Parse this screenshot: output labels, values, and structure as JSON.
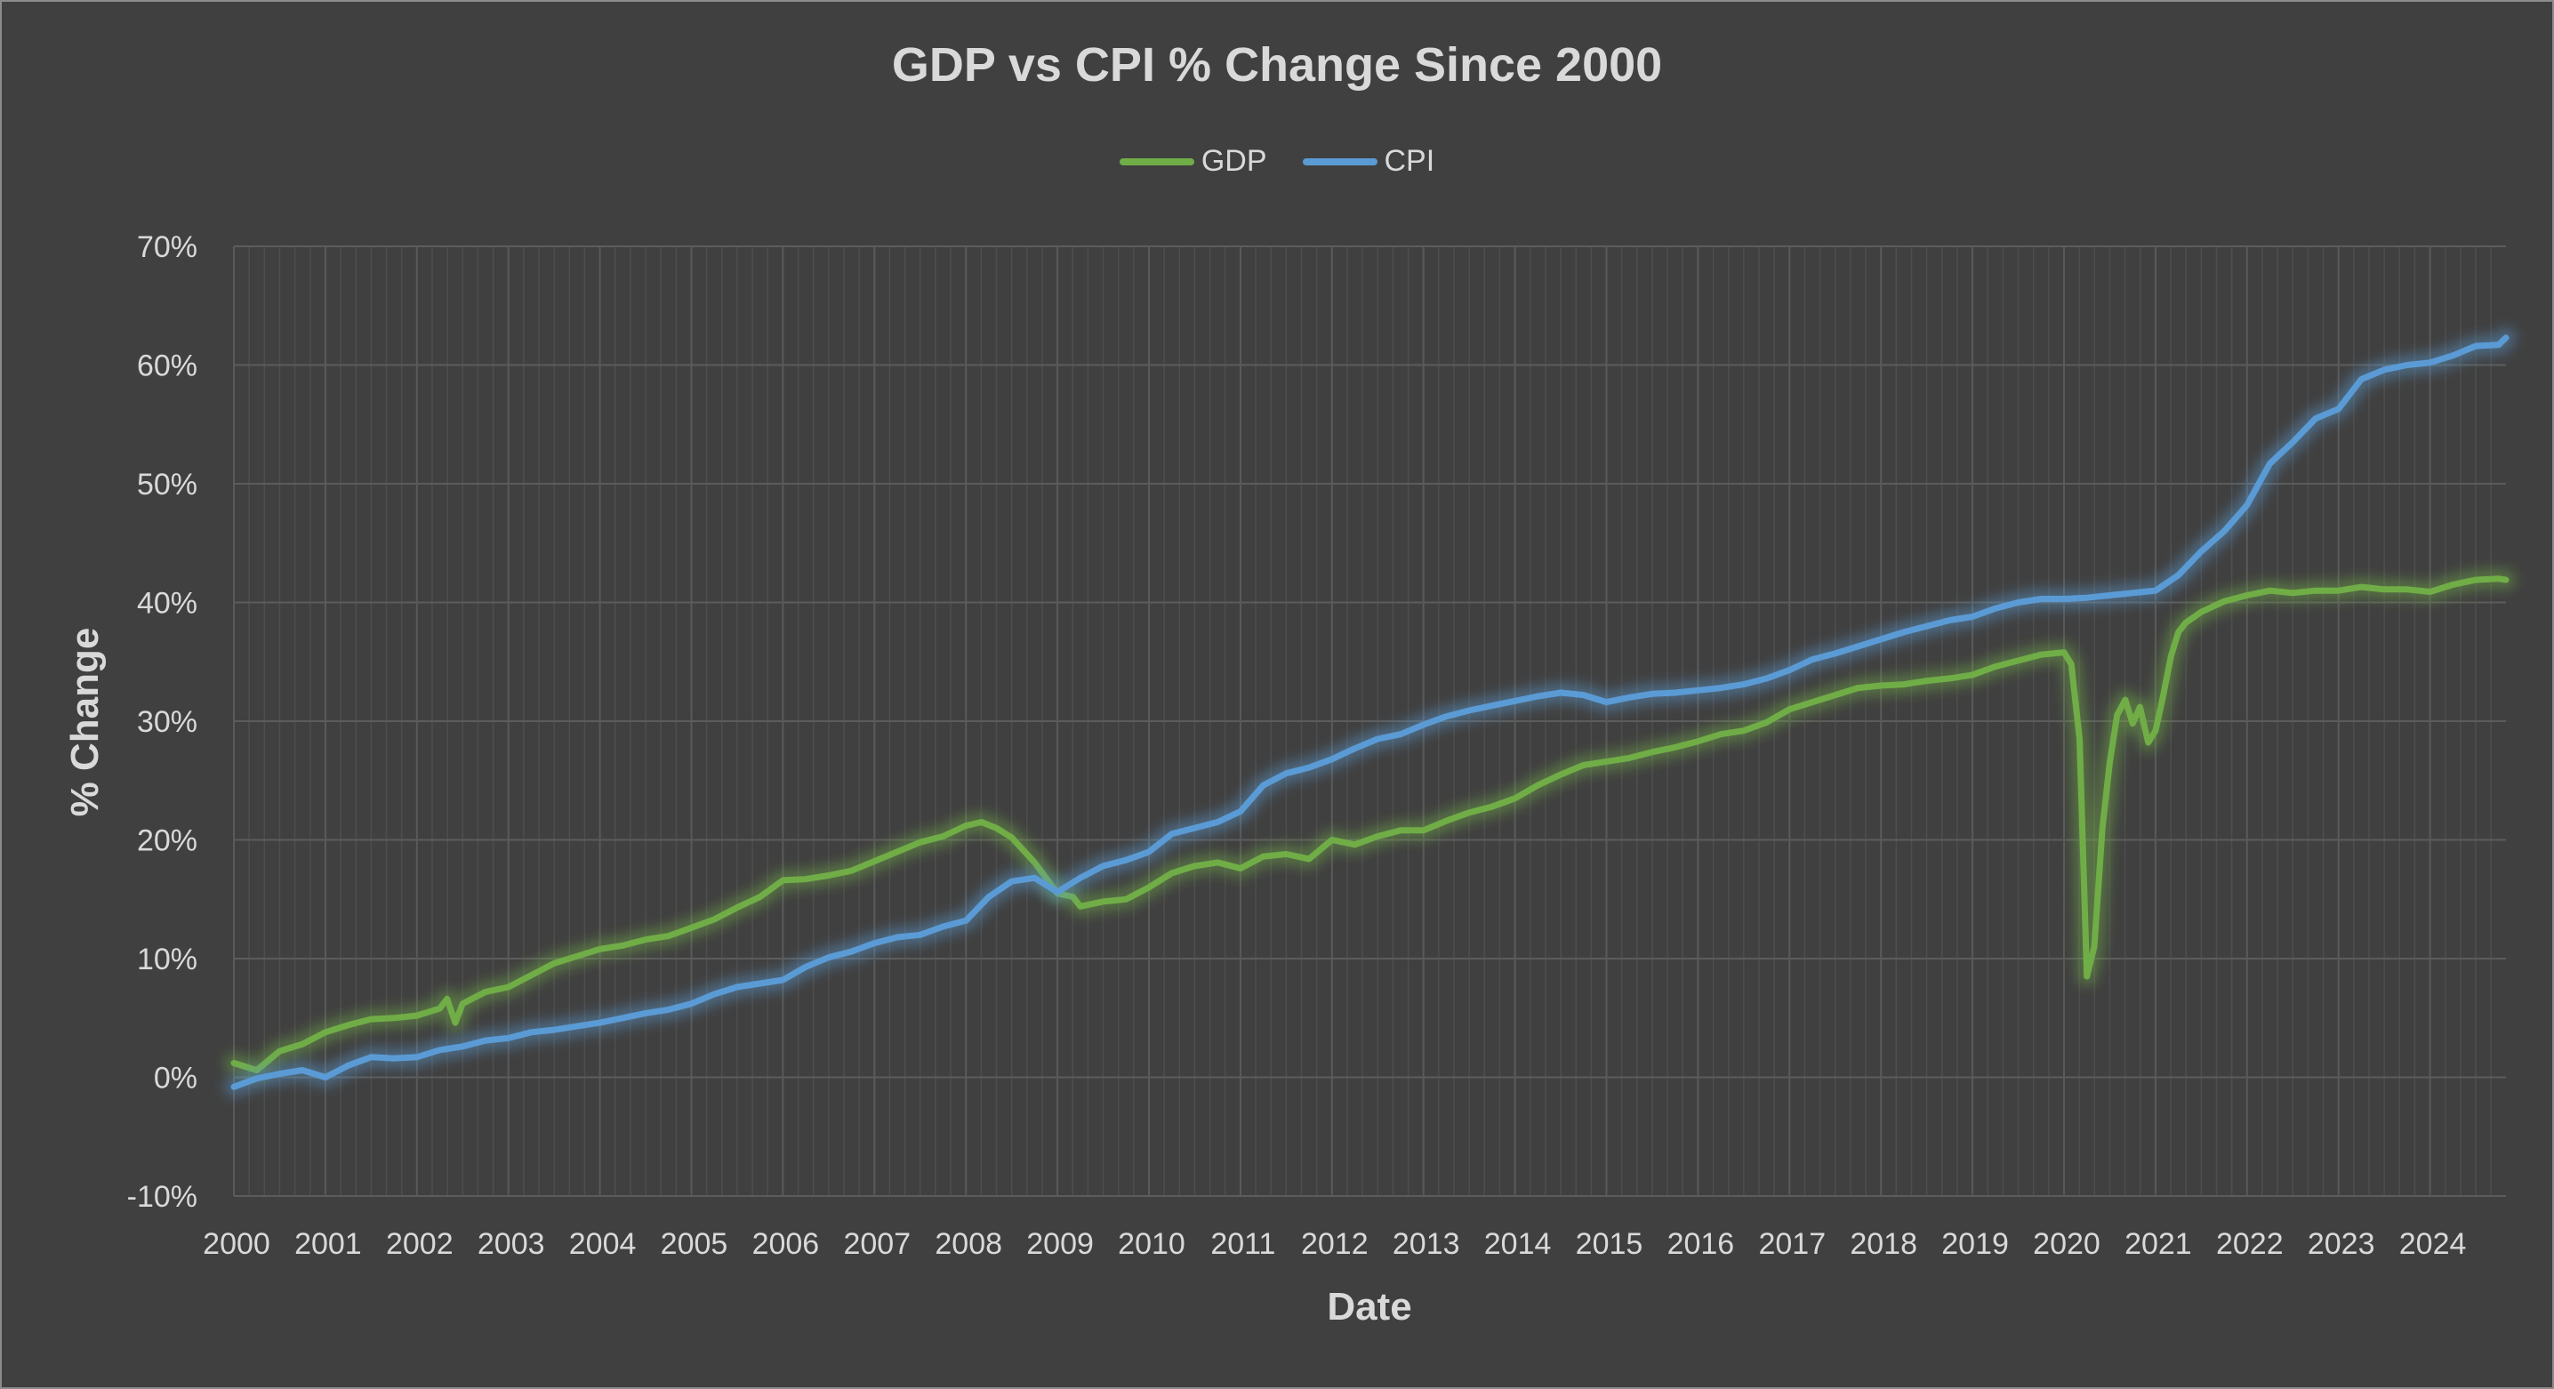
{
  "chart_data": {
    "type": "line",
    "title": "GDP vs CPI % Change Since 2000",
    "xlabel": "Date",
    "ylabel": "% Change",
    "ylim": [
      -10,
      70
    ],
    "y_ticks": [
      "-10%",
      "0%",
      "10%",
      "20%",
      "30%",
      "40%",
      "50%",
      "60%",
      "70%"
    ],
    "x_ticks": [
      "2000",
      "2001",
      "2002",
      "2003",
      "2004",
      "2005",
      "2006",
      "2007",
      "2008",
      "2009",
      "2010",
      "2011",
      "2012",
      "2013",
      "2014",
      "2015",
      "2016",
      "2017",
      "2018",
      "2019",
      "2020",
      "2021",
      "2022",
      "2023",
      "2024"
    ],
    "xlim": [
      2000.0,
      2024.83
    ],
    "grid": true,
    "legend_position": "top",
    "series": [
      {
        "name": "GDP",
        "color": "#70ad47",
        "x": [
          2000.0,
          2000.25,
          2000.5,
          2000.75,
          2001.0,
          2001.25,
          2001.5,
          2001.75,
          2002.0,
          2002.25,
          2002.33,
          2002.42,
          2002.5,
          2002.75,
          2003.0,
          2003.25,
          2003.5,
          2003.75,
          2004.0,
          2004.25,
          2004.5,
          2004.75,
          2005.0,
          2005.25,
          2005.5,
          2005.75,
          2006.0,
          2006.25,
          2006.5,
          2006.75,
          2007.0,
          2007.25,
          2007.5,
          2007.75,
          2008.0,
          2008.17,
          2008.33,
          2008.5,
          2008.75,
          2009.0,
          2009.17,
          2009.25,
          2009.5,
          2009.75,
          2010.0,
          2010.25,
          2010.5,
          2010.75,
          2011.0,
          2011.25,
          2011.5,
          2011.75,
          2012.0,
          2012.25,
          2012.5,
          2012.75,
          2013.0,
          2013.25,
          2013.5,
          2013.75,
          2014.0,
          2014.25,
          2014.5,
          2014.75,
          2015.0,
          2015.25,
          2015.5,
          2015.75,
          2016.0,
          2016.25,
          2016.5,
          2016.75,
          2017.0,
          2017.25,
          2017.5,
          2017.75,
          2018.0,
          2018.25,
          2018.5,
          2018.75,
          2019.0,
          2019.25,
          2019.5,
          2019.75,
          2020.0,
          2020.08,
          2020.17,
          2020.25,
          2020.33,
          2020.42,
          2020.5,
          2020.58,
          2020.67,
          2020.75,
          2020.83,
          2020.92,
          2021.0,
          2021.08,
          2021.17,
          2021.25,
          2021.33,
          2021.5,
          2021.75,
          2022.0,
          2022.25,
          2022.5,
          2022.75,
          2023.0,
          2023.25,
          2023.5,
          2023.75,
          2024.0,
          2024.25,
          2024.5,
          2024.75,
          2024.83
        ],
        "values": [
          1.2,
          0.6,
          2.2,
          2.8,
          3.8,
          4.4,
          4.9,
          5.0,
          5.2,
          5.8,
          6.6,
          4.6,
          6.2,
          7.2,
          7.6,
          8.6,
          9.6,
          10.2,
          10.8,
          11.1,
          11.6,
          11.9,
          12.6,
          13.3,
          14.3,
          15.2,
          16.6,
          16.7,
          17.0,
          17.4,
          18.2,
          19.0,
          19.8,
          20.3,
          21.2,
          21.5,
          21.0,
          20.2,
          18.1,
          15.5,
          15.2,
          14.4,
          14.8,
          15.0,
          16.0,
          17.2,
          17.8,
          18.1,
          17.6,
          18.6,
          18.8,
          18.4,
          20.0,
          19.6,
          20.3,
          20.8,
          20.8,
          21.6,
          22.3,
          22.8,
          23.5,
          24.6,
          25.5,
          26.3,
          26.6,
          26.9,
          27.4,
          27.8,
          28.3,
          28.9,
          29.2,
          29.9,
          31.0,
          31.6,
          32.2,
          32.8,
          33.0,
          33.1,
          33.4,
          33.6,
          33.9,
          34.6,
          35.1,
          35.6,
          35.8,
          34.8,
          28.5,
          8.5,
          11.0,
          21.0,
          26.5,
          30.5,
          31.8,
          29.8,
          31.2,
          28.2,
          29.2,
          32.0,
          35.5,
          37.5,
          38.3,
          39.2,
          40.1,
          40.6,
          41.0,
          40.8,
          41.0,
          41.0,
          41.3,
          41.1,
          41.1,
          40.9,
          41.5,
          41.9,
          42.0,
          41.9
        ]
      },
      {
        "name": "CPI",
        "color": "#5b9bd5",
        "x": [
          2000.0,
          2000.25,
          2000.5,
          2000.75,
          2001.0,
          2001.25,
          2001.5,
          2001.75,
          2002.0,
          2002.25,
          2002.5,
          2002.75,
          2003.0,
          2003.25,
          2003.5,
          2003.75,
          2004.0,
          2004.25,
          2004.5,
          2004.75,
          2005.0,
          2005.25,
          2005.5,
          2005.75,
          2006.0,
          2006.25,
          2006.5,
          2006.75,
          2007.0,
          2007.25,
          2007.5,
          2007.75,
          2008.0,
          2008.25,
          2008.5,
          2008.75,
          2009.0,
          2009.25,
          2009.5,
          2009.75,
          2010.0,
          2010.25,
          2010.5,
          2010.75,
          2011.0,
          2011.25,
          2011.5,
          2011.75,
          2012.0,
          2012.25,
          2012.5,
          2012.75,
          2013.0,
          2013.25,
          2013.5,
          2013.75,
          2014.0,
          2014.25,
          2014.5,
          2014.75,
          2015.0,
          2015.25,
          2015.5,
          2015.75,
          2016.0,
          2016.25,
          2016.5,
          2016.75,
          2017.0,
          2017.25,
          2017.5,
          2017.75,
          2018.0,
          2018.25,
          2018.5,
          2018.75,
          2019.0,
          2019.25,
          2019.5,
          2019.75,
          2020.0,
          2020.25,
          2020.5,
          2020.75,
          2021.0,
          2021.25,
          2021.5,
          2021.75,
          2022.0,
          2022.25,
          2022.5,
          2022.75,
          2023.0,
          2023.25,
          2023.5,
          2023.75,
          2024.0,
          2024.25,
          2024.5,
          2024.75,
          2024.83
        ],
        "values": [
          -0.8,
          -0.1,
          0.3,
          0.6,
          0.0,
          1.0,
          1.7,
          1.6,
          1.7,
          2.3,
          2.6,
          3.1,
          3.3,
          3.8,
          4.0,
          4.3,
          4.6,
          5.0,
          5.4,
          5.7,
          6.2,
          7.0,
          7.6,
          7.9,
          8.2,
          9.3,
          10.1,
          10.6,
          11.3,
          11.8,
          12.0,
          12.7,
          13.2,
          15.2,
          16.5,
          16.8,
          15.6,
          16.8,
          17.8,
          18.3,
          19.0,
          20.5,
          21.0,
          21.5,
          22.4,
          24.6,
          25.6,
          26.1,
          26.8,
          27.7,
          28.5,
          28.9,
          29.7,
          30.4,
          30.9,
          31.3,
          31.7,
          32.1,
          32.4,
          32.2,
          31.6,
          32.0,
          32.3,
          32.4,
          32.6,
          32.8,
          33.1,
          33.6,
          34.3,
          35.2,
          35.7,
          36.3,
          36.9,
          37.5,
          38.0,
          38.5,
          38.8,
          39.5,
          40.0,
          40.3,
          40.3,
          40.4,
          40.6,
          40.8,
          41.0,
          42.3,
          44.3,
          46.0,
          48.2,
          51.7,
          53.5,
          55.5,
          56.3,
          58.8,
          59.6,
          60.0,
          60.2,
          60.8,
          61.6,
          61.7,
          62.3
        ]
      }
    ]
  }
}
